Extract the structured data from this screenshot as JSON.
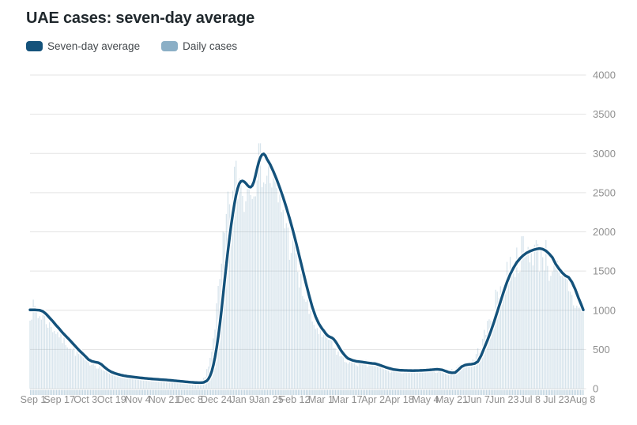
{
  "title": "UAE cases: seven-day average",
  "legend": [
    {
      "label": "Seven-day average",
      "color": "#14527b"
    },
    {
      "label": "Daily cases",
      "color": "#8bafc6"
    }
  ],
  "colors": {
    "line": "#14527b",
    "line_halo": "#ffffff",
    "bars": "rgba(139,175,198,0.34)",
    "axis_day_ticks": "rgba(139,175,198,0.5)",
    "grid": "#e3e3e3",
    "axis_text": "#8f8f8f",
    "background": "#ffffff"
  },
  "chart_data": {
    "type": "line",
    "title": "UAE cases: seven-day average",
    "xlabel": "",
    "ylabel": "",
    "ylim": [
      0,
      4000
    ],
    "y_tick_interval": 500,
    "y_axis_side": "right",
    "grid": "horizontal",
    "legend_position": "top-left",
    "x_unit": "days since Sep 1",
    "x_total_days": 341,
    "x_tick_labels": [
      "Sep 1",
      "Sep 17",
      "Oct 3",
      "Oct 19",
      "Nov 4",
      "Nov 21",
      "Dec 8",
      "Dec 24",
      "Jan 9",
      "Jan 25",
      "Feb 12",
      "Mar 1",
      "Mar 17",
      "Apr 2",
      "Apr 18",
      "May 4",
      "May 21",
      "Jun 7",
      "Jun 23",
      "Jul 8",
      "Jul 23",
      "Aug 8"
    ],
    "y_tick_labels": [
      "0",
      "500",
      "1000",
      "1500",
      "2000",
      "2500",
      "3000",
      "3500",
      "4000"
    ],
    "series": [
      {
        "name": "Seven-day average",
        "style": "line",
        "color": "#14527b",
        "points": [
          [
            0,
            1005
          ],
          [
            3,
            1005
          ],
          [
            6,
            1000
          ],
          [
            8,
            985
          ],
          [
            10,
            950
          ],
          [
            12,
            905
          ],
          [
            14,
            860
          ],
          [
            16,
            810
          ],
          [
            18,
            765
          ],
          [
            20,
            715
          ],
          [
            22,
            672
          ],
          [
            24,
            630
          ],
          [
            26,
            585
          ],
          [
            28,
            540
          ],
          [
            30,
            495
          ],
          [
            32,
            455
          ],
          [
            34,
            415
          ],
          [
            36,
            372
          ],
          [
            38,
            350
          ],
          [
            40,
            340
          ],
          [
            42,
            332
          ],
          [
            44,
            310
          ],
          [
            46,
            272
          ],
          [
            48,
            240
          ],
          [
            50,
            215
          ],
          [
            52,
            198
          ],
          [
            54,
            185
          ],
          [
            56,
            174
          ],
          [
            58,
            165
          ],
          [
            60,
            158
          ],
          [
            63,
            150
          ],
          [
            66,
            143
          ],
          [
            69,
            136
          ],
          [
            72,
            130
          ],
          [
            76,
            123
          ],
          [
            80,
            117
          ],
          [
            84,
            111
          ],
          [
            88,
            104
          ],
          [
            92,
            96
          ],
          [
            96,
            88
          ],
          [
            99,
            82
          ],
          [
            102,
            78
          ],
          [
            105,
            76
          ],
          [
            107,
            80
          ],
          [
            109,
            100
          ],
          [
            110,
            125
          ],
          [
            111,
            165
          ],
          [
            112,
            220
          ],
          [
            113,
            300
          ],
          [
            114,
            400
          ],
          [
            115,
            520
          ],
          [
            116,
            660
          ],
          [
            117,
            820
          ],
          [
            118,
            1000
          ],
          [
            119,
            1190
          ],
          [
            120,
            1390
          ],
          [
            121,
            1580
          ],
          [
            122,
            1760
          ],
          [
            123,
            1930
          ],
          [
            124,
            2090
          ],
          [
            125,
            2230
          ],
          [
            126,
            2360
          ],
          [
            127,
            2470
          ],
          [
            128,
            2555
          ],
          [
            129,
            2615
          ],
          [
            130,
            2645
          ],
          [
            131,
            2650
          ],
          [
            132,
            2640
          ],
          [
            133,
            2620
          ],
          [
            134,
            2595
          ],
          [
            135,
            2575
          ],
          [
            136,
            2570
          ],
          [
            137,
            2590
          ],
          [
            138,
            2640
          ],
          [
            139,
            2720
          ],
          [
            140,
            2810
          ],
          [
            141,
            2890
          ],
          [
            142,
            2950
          ],
          [
            143,
            2985
          ],
          [
            144,
            2995
          ],
          [
            145,
            2975
          ],
          [
            146,
            2930
          ],
          [
            148,
            2860
          ],
          [
            150,
            2770
          ],
          [
            152,
            2670
          ],
          [
            154,
            2560
          ],
          [
            156,
            2440
          ],
          [
            158,
            2310
          ],
          [
            160,
            2170
          ],
          [
            162,
            2020
          ],
          [
            164,
            1860
          ],
          [
            166,
            1690
          ],
          [
            168,
            1520
          ],
          [
            170,
            1350
          ],
          [
            172,
            1190
          ],
          [
            174,
            1040
          ],
          [
            176,
            920
          ],
          [
            178,
            830
          ],
          [
            180,
            765
          ],
          [
            181,
            740
          ],
          [
            182,
            710
          ],
          [
            183,
            685
          ],
          [
            184,
            668
          ],
          [
            185,
            658
          ],
          [
            186,
            650
          ],
          [
            187,
            635
          ],
          [
            188,
            610
          ],
          [
            189,
            580
          ],
          [
            190,
            545
          ],
          [
            191,
            510
          ],
          [
            192,
            478
          ],
          [
            193,
            450
          ],
          [
            194,
            425
          ],
          [
            195,
            403
          ],
          [
            196,
            385
          ],
          [
            199,
            360
          ],
          [
            201,
            350
          ],
          [
            203,
            345
          ],
          [
            208,
            330
          ],
          [
            211,
            322
          ],
          [
            213,
            318
          ],
          [
            215,
            305
          ],
          [
            217,
            290
          ],
          [
            219,
            275
          ],
          [
            221,
            262
          ],
          [
            224,
            245
          ],
          [
            228,
            235
          ],
          [
            232,
            232
          ],
          [
            236,
            230
          ],
          [
            240,
            232
          ],
          [
            244,
            236
          ],
          [
            248,
            242
          ],
          [
            251,
            248
          ],
          [
            254,
            240
          ],
          [
            256,
            225
          ],
          [
            258,
            210
          ],
          [
            260,
            202
          ],
          [
            262,
            205
          ],
          [
            264,
            240
          ],
          [
            266,
            280
          ],
          [
            268,
            300
          ],
          [
            270,
            308
          ],
          [
            272,
            312
          ],
          [
            274,
            320
          ],
          [
            276,
            345
          ],
          [
            278,
            420
          ],
          [
            280,
            520
          ],
          [
            282,
            620
          ],
          [
            284,
            730
          ],
          [
            286,
            850
          ],
          [
            288,
            980
          ],
          [
            290,
            1110
          ],
          [
            292,
            1240
          ],
          [
            294,
            1360
          ],
          [
            296,
            1460
          ],
          [
            298,
            1540
          ],
          [
            300,
            1610
          ],
          [
            302,
            1660
          ],
          [
            304,
            1700
          ],
          [
            306,
            1730
          ],
          [
            308,
            1752
          ],
          [
            310,
            1768
          ],
          [
            312,
            1780
          ],
          [
            314,
            1788
          ],
          [
            316,
            1780
          ],
          [
            318,
            1758
          ],
          [
            320,
            1720
          ],
          [
            322,
            1672
          ],
          [
            324,
            1590
          ],
          [
            326,
            1530
          ],
          [
            328,
            1480
          ],
          [
            330,
            1440
          ],
          [
            332,
            1420
          ],
          [
            334,
            1360
          ],
          [
            336,
            1270
          ],
          [
            338,
            1160
          ],
          [
            340,
            1060
          ],
          [
            341,
            1005
          ]
        ]
      },
      {
        "name": "Daily cases",
        "style": "bar",
        "color": "rgba(139,175,198,0.34)",
        "derivation": "approximate: seven-day average advanced 3 days with ±14% noise (individual 1px bars not legible in source image)",
        "noise_seed": 7,
        "noise_amplitude": 0.14,
        "max_clamp": 3130
      }
    ]
  }
}
